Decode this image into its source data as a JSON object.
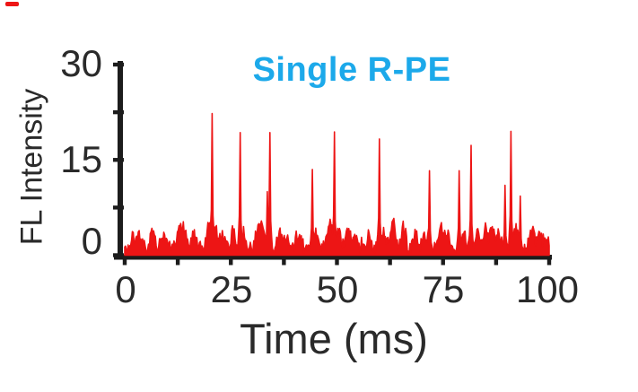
{
  "figure": {
    "background_color": "#ffffff",
    "trace_color": "#ed1515",
    "axis_color": "#1c1c1c",
    "text_color": "#2a2a2a",
    "title_color": "#1ca9ea"
  },
  "chart_data": {
    "type": "line",
    "title": "Single R-PE",
    "xlabel": "Time (ms)",
    "ylabel": "FL Intensity",
    "xlim": [
      0,
      100
    ],
    "ylim": [
      0,
      30
    ],
    "x_tick_labels": [
      "0",
      "25",
      "50",
      "75",
      "100"
    ],
    "y_tick_labels": [
      "30",
      "15",
      "0"
    ],
    "x_ticks_all": [
      0,
      12.5,
      25,
      37.5,
      50,
      62.5,
      75,
      87.5,
      100
    ],
    "y_ticks_all": [
      0,
      7.5,
      15,
      22.5,
      30
    ],
    "grid": false,
    "legend": "none",
    "series_name": "single R-PE fluorescence burst trace",
    "sample_step_ms": 0.2,
    "peaks": [
      {
        "t": 20.7,
        "intensity": 22.3
      },
      {
        "t": 27.2,
        "intensity": 19.3
      },
      {
        "t": 33.5,
        "intensity": 10.0
      },
      {
        "t": 34.3,
        "intensity": 19.3
      },
      {
        "t": 44.3,
        "intensity": 13.5
      },
      {
        "t": 49.4,
        "intensity": 19.4
      },
      {
        "t": 60.0,
        "intensity": 18.3
      },
      {
        "t": 71.8,
        "intensity": 13.3
      },
      {
        "t": 78.8,
        "intensity": 13.3
      },
      {
        "t": 81.5,
        "intensity": 17.3
      },
      {
        "t": 89.5,
        "intensity": 11.0
      },
      {
        "t": 91.0,
        "intensity": 19.5
      },
      {
        "t": 93.2,
        "intensity": 9.3
      }
    ],
    "noise_bumps": [
      {
        "t": 2.0,
        "intensity": 2.6
      },
      {
        "t": 3.6,
        "intensity": 2.9
      },
      {
        "t": 6.5,
        "intensity": 3.2
      },
      {
        "t": 9.0,
        "intensity": 2.6
      },
      {
        "t": 13.0,
        "intensity": 4.7
      },
      {
        "t": 14.1,
        "intensity": 3.7
      },
      {
        "t": 16.2,
        "intensity": 3.1
      },
      {
        "t": 19.8,
        "intensity": 4.2
      },
      {
        "t": 21.4,
        "intensity": 4.0
      },
      {
        "t": 23.0,
        "intensity": 2.8
      },
      {
        "t": 25.6,
        "intensity": 3.6
      },
      {
        "t": 28.1,
        "intensity": 3.3
      },
      {
        "t": 31.2,
        "intensity": 3.7
      },
      {
        "t": 32.4,
        "intensity": 4.8
      },
      {
        "t": 36.5,
        "intensity": 3.6
      },
      {
        "t": 38.0,
        "intensity": 2.9
      },
      {
        "t": 41.0,
        "intensity": 3.0
      },
      {
        "t": 45.2,
        "intensity": 3.3
      },
      {
        "t": 48.3,
        "intensity": 5.5
      },
      {
        "t": 50.4,
        "intensity": 3.3
      },
      {
        "t": 52.6,
        "intensity": 3.7
      },
      {
        "t": 54.1,
        "intensity": 3.0
      },
      {
        "t": 57.6,
        "intensity": 3.0
      },
      {
        "t": 61.0,
        "intensity": 3.2
      },
      {
        "t": 63.1,
        "intensity": 5.2
      },
      {
        "t": 65.6,
        "intensity": 4.1
      },
      {
        "t": 68.6,
        "intensity": 3.3
      },
      {
        "t": 70.8,
        "intensity": 3.1
      },
      {
        "t": 74.6,
        "intensity": 4.1
      },
      {
        "t": 76.1,
        "intensity": 3.5
      },
      {
        "t": 79.8,
        "intensity": 3.5
      },
      {
        "t": 83.2,
        "intensity": 3.1
      },
      {
        "t": 84.9,
        "intensity": 3.9
      },
      {
        "t": 86.6,
        "intensity": 4.5
      },
      {
        "t": 88.1,
        "intensity": 3.5
      },
      {
        "t": 92.1,
        "intensity": 4.2
      },
      {
        "t": 95.9,
        "intensity": 3.7
      },
      {
        "t": 97.6,
        "intensity": 3.1
      },
      {
        "t": 99.2,
        "intensity": 2.7
      }
    ],
    "baseline_noise": {
      "min": 0.2,
      "max": 2.2,
      "seed": 7
    }
  }
}
